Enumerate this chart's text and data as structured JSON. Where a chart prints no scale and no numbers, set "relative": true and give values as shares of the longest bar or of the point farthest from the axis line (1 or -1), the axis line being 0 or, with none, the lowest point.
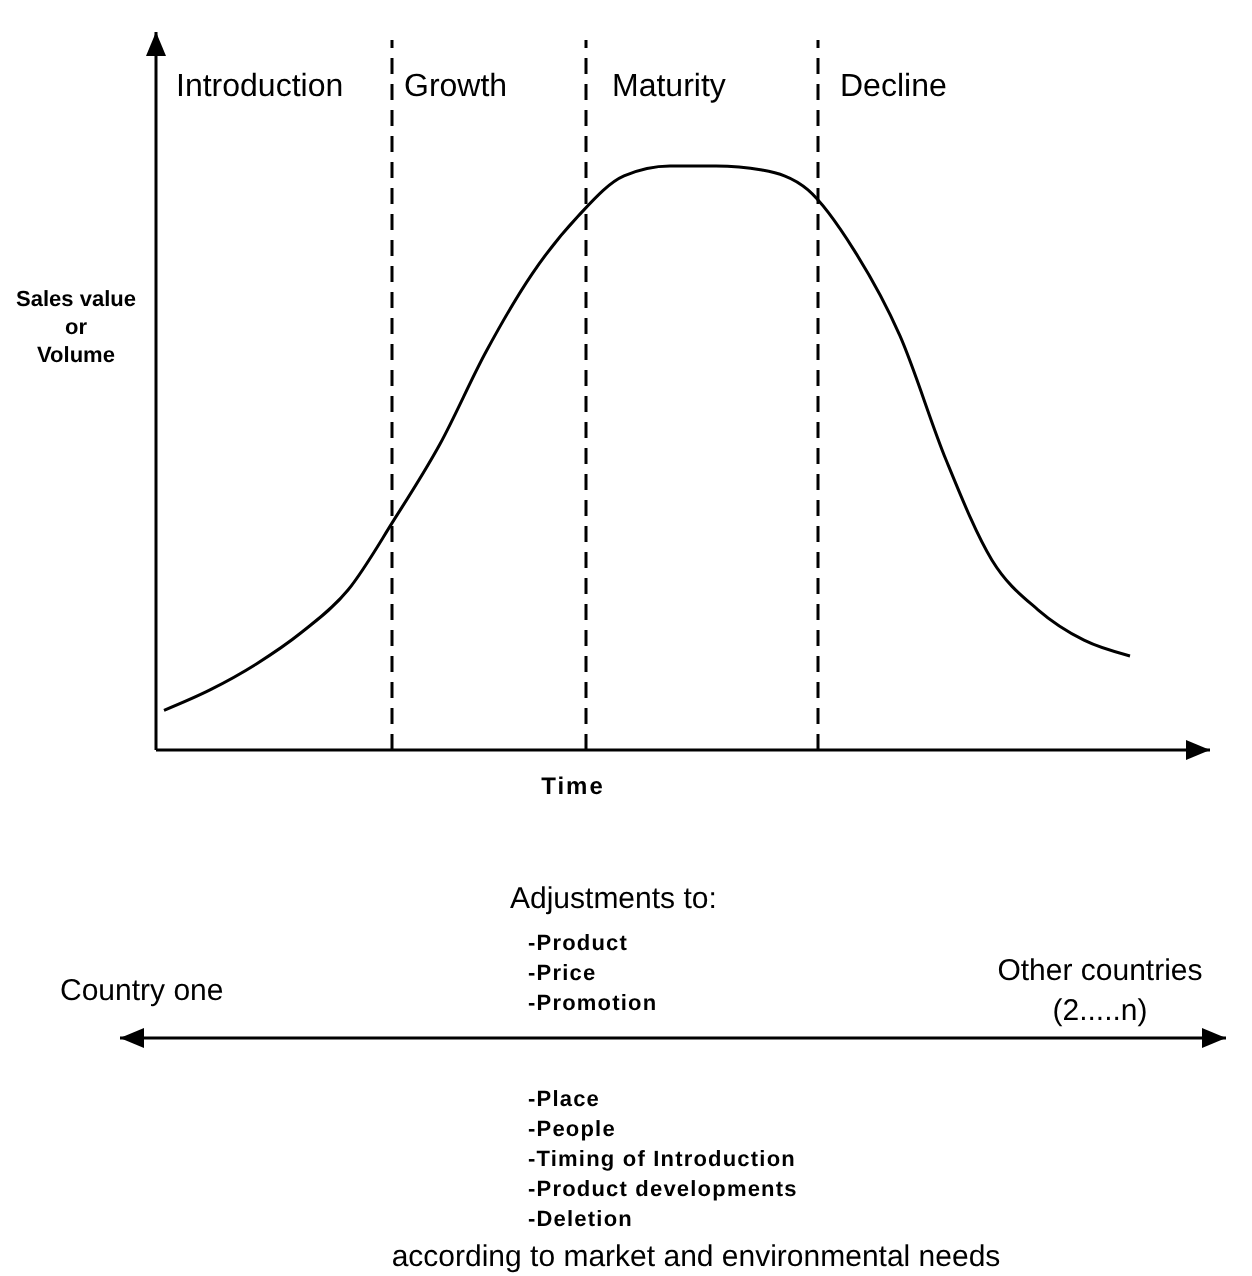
{
  "chart_data": {
    "type": "line",
    "relative": true,
    "xlabel": "Time",
    "ylabel": "Sales value or Volume",
    "categories": [
      null,
      null,
      null,
      null,
      null,
      null,
      null,
      null,
      null,
      null,
      null,
      null,
      null,
      null,
      null,
      null,
      null,
      null,
      null,
      null,
      null,
      null
    ],
    "line_style": "solid",
    "series": [
      {
        "color": "#000000",
        "values": [
          0.068,
          0.103,
          0.147,
          0.202,
          0.274,
          0.394,
          0.524,
          0.682,
          0.815,
          0.914,
          0.983,
          1,
          1,
          0.993,
          0.959,
          0.856,
          0.709,
          0.497,
          0.325,
          0.24,
          0.188,
          0.161
        ]
      }
    ],
    "annotations": [
      "Introduction",
      "Growth",
      "Maturity",
      "Decline",
      "Adjustments to:",
      "-Product",
      "-Price",
      "-Promotion",
      "Country one",
      "Other countries",
      "(2.....n)",
      "-Place",
      "-People",
      "-Timing of Introduction",
      "-Product developments",
      "-Deletion",
      "according to market and environmental needs"
    ]
  }
}
